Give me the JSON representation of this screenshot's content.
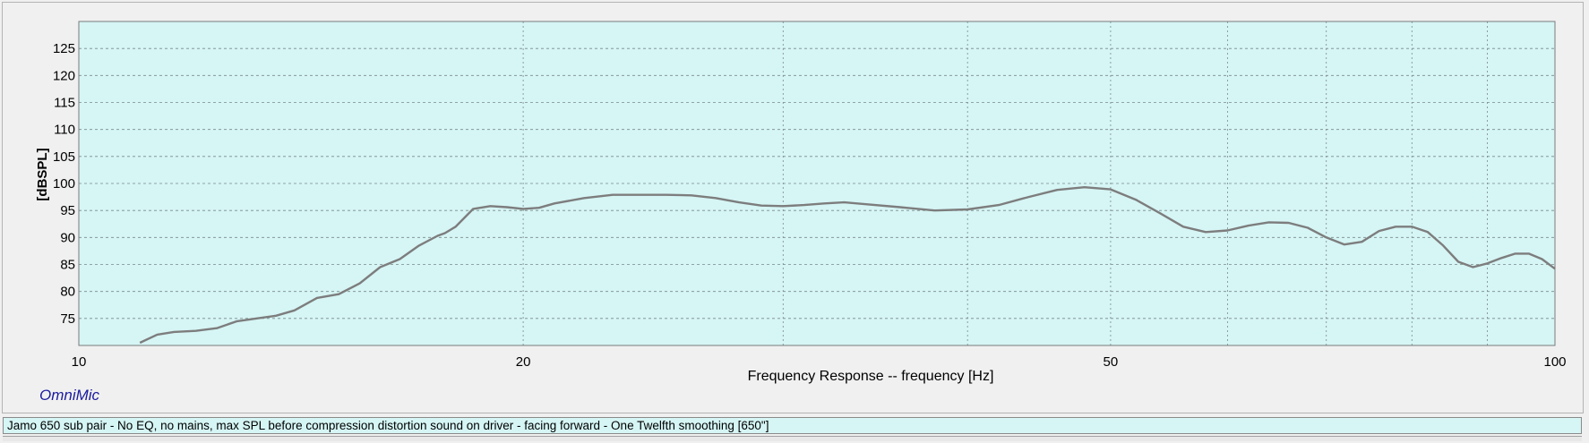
{
  "window": {
    "brand": "OmniMic"
  },
  "caption": "Jamo 650 sub pair - No EQ, no mains, max SPL before compression distortion sound on driver - facing forward  - One Twelfth smoothing [650\"]",
  "colors": {
    "plot_bg": "#d6f5f5",
    "grid": "#7a8a8a",
    "curve": "#7d7d7d",
    "brand": "#1a1aa0"
  },
  "chart_data": {
    "type": "line",
    "title": "",
    "xlabel": "Frequency Response -- frequency [Hz]",
    "ylabel": "[dBSPL]",
    "xscale": "log",
    "xlim": [
      10,
      100
    ],
    "ylim": [
      70,
      130
    ],
    "x_tick_labels": [
      {
        "value": 10,
        "label": "10"
      },
      {
        "value": 20,
        "label": "20"
      },
      {
        "value": 50,
        "label": "50"
      },
      {
        "value": 100,
        "label": "100"
      }
    ],
    "x_grid": [
      20,
      30,
      40,
      50,
      60,
      70,
      80,
      90
    ],
    "y_ticks": [
      75,
      80,
      85,
      90,
      95,
      100,
      105,
      110,
      115,
      120,
      125
    ],
    "grid": true,
    "series": [
      {
        "x": [
          11.0,
          11.3,
          11.6,
          12.0,
          12.4,
          12.8,
          13.2,
          13.6,
          14.0,
          14.5,
          15.0,
          15.5,
          16.0,
          16.5,
          17.0,
          17.5,
          17.7,
          18.0,
          18.5,
          19.0,
          19.5,
          20.0,
          20.5,
          21.0,
          22.0,
          23.0,
          24.0,
          25.0,
          26.0,
          27.0,
          28.0,
          29.0,
          30.0,
          31.0,
          32.0,
          33.0,
          34.0,
          36.0,
          38.0,
          40.0,
          42.0,
          44.0,
          46.0,
          48.0,
          50.0,
          52.0,
          54.0,
          56.0,
          58.0,
          60.0,
          62.0,
          64.0,
          66.0,
          68.0,
          70.0,
          72.0,
          74.0,
          76.0,
          78.0,
          80.0,
          82.0,
          84.0,
          86.0,
          88.0,
          90.0,
          92.0,
          94.0,
          96.0,
          98.0,
          100.0
        ],
        "y": [
          70.5,
          72.0,
          72.5,
          72.7,
          73.2,
          74.5,
          75.0,
          75.5,
          76.5,
          78.8,
          79.5,
          81.5,
          84.5,
          86.0,
          88.5,
          90.3,
          90.8,
          92.0,
          95.3,
          95.8,
          95.6,
          95.3,
          95.5,
          96.3,
          97.3,
          97.9,
          97.9,
          97.9,
          97.8,
          97.3,
          96.5,
          95.9,
          95.8,
          96.0,
          96.3,
          96.5,
          96.2,
          95.6,
          95.0,
          95.2,
          96.0,
          97.5,
          98.8,
          99.3,
          98.9,
          97.0,
          94.5,
          92.0,
          91.0,
          91.3,
          92.2,
          92.8,
          92.7,
          91.8,
          90.0,
          88.7,
          89.2,
          91.2,
          92.0,
          92.0,
          91.0,
          88.5,
          85.5,
          84.5,
          85.2,
          86.2,
          87.0,
          87.0,
          86.0,
          84.2
        ]
      }
    ]
  }
}
